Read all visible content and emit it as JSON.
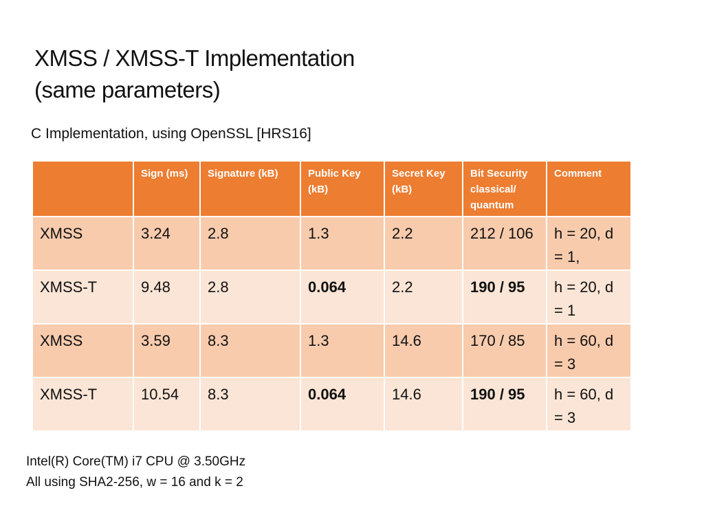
{
  "title": {
    "line1": "XMSS / XMSS-T Implementation",
    "line2": "(same parameters)"
  },
  "subtitle": "C Implementation, using OpenSSL [HRS16]",
  "table": {
    "headers": [
      "",
      "Sign (ms)",
      "Signature (kB)",
      "Public Key (kB)",
      "Secret Key (kB)",
      "Bit Security classical/ quantum",
      "Comment"
    ],
    "rows": [
      [
        "XMSS",
        "3.24",
        "2.8",
        "1.3",
        "2.2",
        "212 / 106",
        "h = 20, d = 1,"
      ],
      [
        "XMSS-T",
        "9.48",
        "2.8",
        "0.064",
        "2.2",
        "190 / 95",
        "h = 20, d = 1"
      ],
      [
        "XMSS",
        "3.59",
        "8.3",
        "1.3",
        "14.6",
        "170 / 85",
        "h = 60, d = 3"
      ],
      [
        "XMSS-T",
        "10.54",
        "8.3",
        "0.064",
        "14.6",
        "190 / 95",
        "h = 60, d = 3"
      ]
    ]
  },
  "colors": {
    "header": "#ed7d31",
    "row_odd": "#f8cbad",
    "row_even": "#fbe5d6"
  },
  "footnote": {
    "line1": "Intel(R) Core(TM) i7 CPU @ 3.50GHz",
    "line2": "All using SHA2-256, w = 16 and k = 2"
  }
}
